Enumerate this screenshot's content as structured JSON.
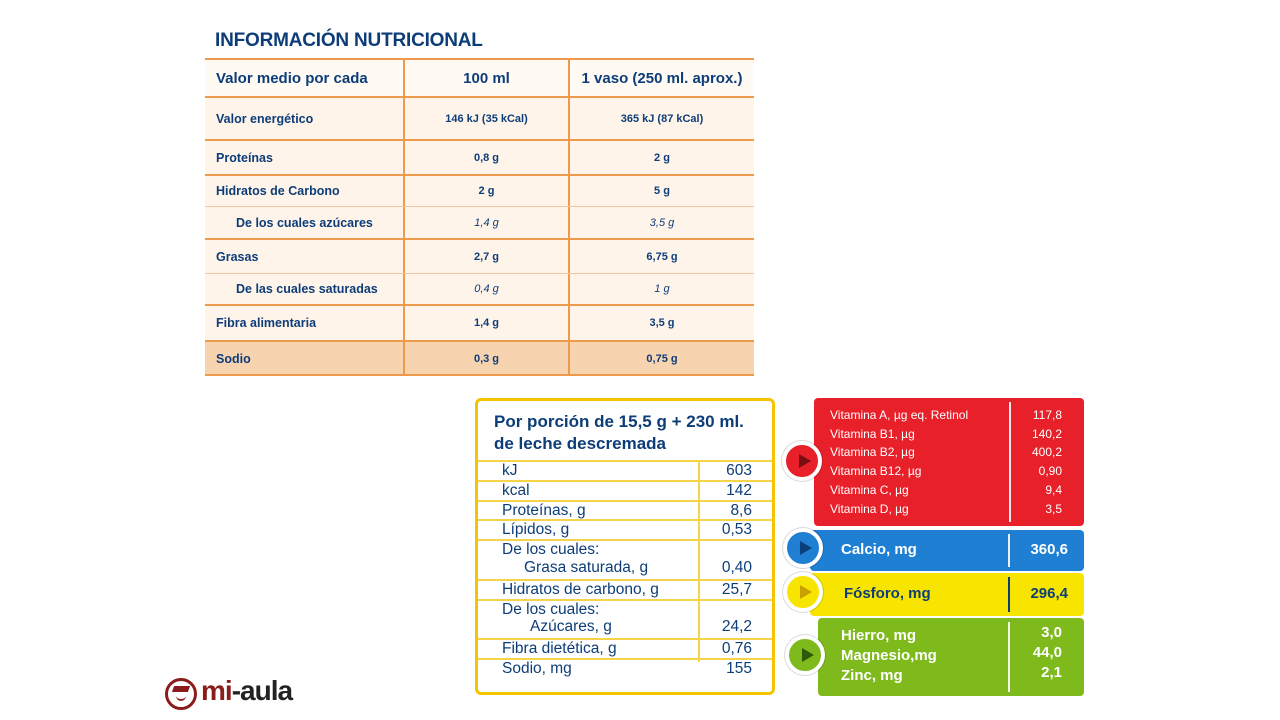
{
  "nutrition_table": {
    "title": "INFORMACIÓN NUTRICIONAL",
    "headers": [
      "Valor medio por cada",
      "100 ml",
      "1 vaso (250 ml. aprox.)"
    ],
    "rows": [
      {
        "label": "Valor energético",
        "per100": "146 kJ (35 kCal)",
        "perGlass": "365 kJ (87 kCal)"
      },
      {
        "label": "Proteínas",
        "per100": "0,8 g",
        "perGlass": "2 g"
      },
      {
        "label": "Hidratos de Carbono",
        "per100": "2 g",
        "perGlass": "5 g"
      },
      {
        "label": "De los cuales azúcares",
        "per100": "1,4 g",
        "perGlass": "3,5 g"
      },
      {
        "label": "Grasas",
        "per100": "2,7 g",
        "perGlass": "6,75 g"
      },
      {
        "label": "De las cuales saturadas",
        "per100": "0,4 g",
        "perGlass": "1 g"
      },
      {
        "label": "Fibra alimentaria",
        "per100": "1,4 g",
        "perGlass": "3,5 g"
      },
      {
        "label": "Sodio",
        "per100": "0,3 g",
        "perGlass": "0,75 g"
      }
    ]
  },
  "portion_box": {
    "title_line1": "Por porción de 15,5 g + 230 ml.",
    "title_line2": "de leche descremada",
    "rows": [
      {
        "label": "kJ",
        "value": "603"
      },
      {
        "label": "kcal",
        "value": "142"
      },
      {
        "label": "Proteínas, g",
        "value": "8,6"
      },
      {
        "label": "Lípidos, g",
        "value": "0,53"
      },
      {
        "label": "De los cuales:",
        "value": ""
      },
      {
        "label": "Grasa saturada, g",
        "value": "0,40"
      },
      {
        "label": "Hidratos de carbono, g",
        "value": "25,7"
      },
      {
        "label": "De los cuales:",
        "value": ""
      },
      {
        "label": "Azúcares, g",
        "value": "24,2"
      },
      {
        "label": "Fibra dietética, g",
        "value": "0,76"
      },
      {
        "label": "Sodio, mg",
        "value": "155"
      }
    ]
  },
  "vitamins": [
    {
      "label": "Vitamina A, µg eq. Retinol",
      "value": "117,8"
    },
    {
      "label": "Vitamina B1, µg",
      "value": "140,2"
    },
    {
      "label": "Vitamina B2, µg",
      "value": "400,2"
    },
    {
      "label": "Vitamina B12, µg",
      "value": "0,90"
    },
    {
      "label": "Vitamina C, µg",
      "value": "9,4"
    },
    {
      "label": "Vitamina D, µg",
      "value": "3,5"
    }
  ],
  "calcio": {
    "label": "Calcio, mg",
    "value": "360,6"
  },
  "fosforo": {
    "label": "Fósforo, mg",
    "value": "296,4"
  },
  "minerals": [
    {
      "label": "Hierro, mg",
      "value": "3,0"
    },
    {
      "label": "Magnesio,mg",
      "value": "44,0"
    },
    {
      "label": "Zinc, mg",
      "value": "2,1"
    }
  ],
  "logo": {
    "text_a": "mi",
    "text_b": "-aula"
  },
  "colors": {
    "orange": "#ee9a4c",
    "navy": "#0d3d78",
    "yellow": "#f5c400",
    "red": "#e8202a",
    "blue": "#1f7fd3",
    "green": "#7fba1d"
  }
}
